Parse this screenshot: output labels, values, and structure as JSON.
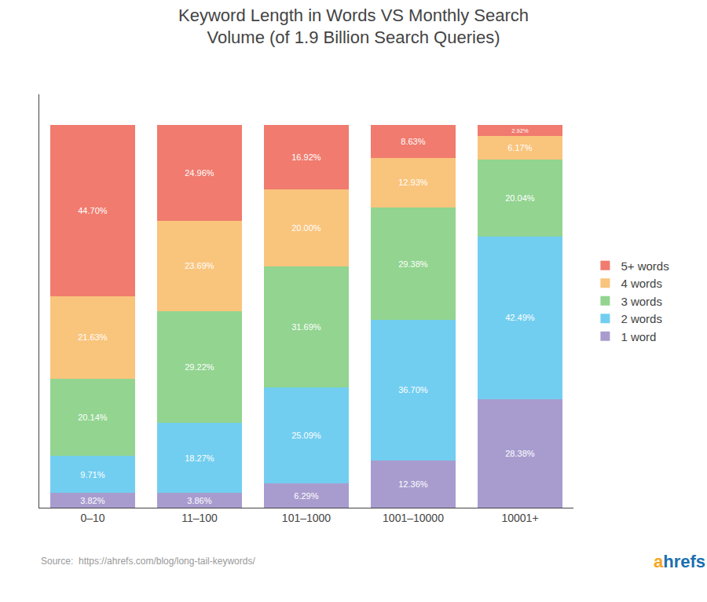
{
  "chart_data": {
    "type": "bar",
    "title": "Keyword Length in Words VS Monthly Search\nVolume (of 1.9 Billion Search Queries)",
    "categories": [
      "0–10",
      "11–100",
      "101–1000",
      "1001–10000",
      "10001+"
    ],
    "series": [
      {
        "name": "1 word",
        "color": "#a89cce",
        "values": [
          3.82,
          3.86,
          6.29,
          12.36,
          28.38
        ],
        "value_labels": [
          "3.82%",
          "3.86%",
          "6.29%",
          "12.36%",
          "28.38%"
        ]
      },
      {
        "name": "2 words",
        "color": "#72cef0",
        "values": [
          9.71,
          18.27,
          25.09,
          36.7,
          42.49
        ],
        "value_labels": [
          "9.71%",
          "18.27%",
          "25.09%",
          "36.70%",
          "42.49%"
        ]
      },
      {
        "name": "3 words",
        "color": "#92d490",
        "values": [
          20.14,
          29.22,
          31.69,
          29.38,
          20.04
        ],
        "value_labels": [
          "20.14%",
          "29.22%",
          "31.69%",
          "29.38%",
          "20.04%"
        ]
      },
      {
        "name": "4 words",
        "color": "#f9c47c",
        "values": [
          21.63,
          23.69,
          20.0,
          12.93,
          6.17
        ],
        "value_labels": [
          "21.63%",
          "23.69%",
          "20.00%",
          "12.93%",
          "6.17%"
        ]
      },
      {
        "name": "5+ words",
        "color": "#f07b6e",
        "values": [
          44.7,
          24.96,
          16.92,
          8.63,
          2.92
        ],
        "value_labels": [
          "44.70%",
          "24.96%",
          "16.92%",
          "8.63%",
          "2.92%"
        ]
      }
    ],
    "stacked": true,
    "data_labels": true,
    "ylim": [
      0,
      108
    ],
    "tick_labels": "x",
    "grid": false,
    "legend": "right",
    "annotations": [
      {
        "text": "Source:"
      },
      {
        "text": "https://ahrefs.com/blog/long-tail-keywords/"
      },
      {
        "text": "a",
        "color": "#f5a623"
      },
      {
        "text": "hrefs",
        "color": "#1a6faf"
      }
    ]
  }
}
